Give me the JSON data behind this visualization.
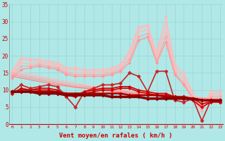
{
  "xlabel": "Vent moyen/en rafales ( km/h )",
  "xlabel_color": "#cc0000",
  "bg_color": "#b0e8e8",
  "grid_color": "#99cccc",
  "xmin": 0,
  "xmax": 23,
  "ymin": 0,
  "ymax": 35,
  "yticks": [
    0,
    5,
    10,
    15,
    20,
    25,
    30,
    35
  ],
  "xticks": [
    0,
    1,
    2,
    3,
    4,
    5,
    6,
    7,
    8,
    9,
    10,
    11,
    12,
    13,
    14,
    15,
    16,
    17,
    18,
    19,
    20,
    21,
    22,
    23
  ],
  "series": [
    {
      "color": "#ffbbbb",
      "lw": 1.0,
      "marker": "D",
      "ms": 2.0,
      "data": [
        15.5,
        19.5,
        19.0,
        19.0,
        18.5,
        18.0,
        16.5,
        16.5,
        16.0,
        16.0,
        16.0,
        16.5,
        17.5,
        21.5,
        28.5,
        29.0,
        21.0,
        31.5,
        17.5,
        15.0,
        9.0,
        5.0,
        9.5,
        9.5
      ]
    },
    {
      "color": "#ffbbbb",
      "lw": 1.0,
      "marker": "D",
      "ms": 2.0,
      "data": [
        15.0,
        19.0,
        18.5,
        18.5,
        18.0,
        17.5,
        16.0,
        16.0,
        15.5,
        15.5,
        15.5,
        16.0,
        17.0,
        21.0,
        28.0,
        28.5,
        20.5,
        29.0,
        16.5,
        14.0,
        8.5,
        4.5,
        9.0,
        9.0
      ]
    },
    {
      "color": "#ffbbbb",
      "lw": 1.0,
      "marker": "D",
      "ms": 2.0,
      "data": [
        14.5,
        18.0,
        17.5,
        18.0,
        17.5,
        17.0,
        15.5,
        15.0,
        15.0,
        15.0,
        15.0,
        15.5,
        16.5,
        20.0,
        27.0,
        27.5,
        19.5,
        27.0,
        16.0,
        13.0,
        8.0,
        4.0,
        8.5,
        8.5
      ]
    },
    {
      "color": "#ffaaaa",
      "lw": 1.0,
      "marker": "D",
      "ms": 2.0,
      "data": [
        14.0,
        17.0,
        17.0,
        17.5,
        17.0,
        16.5,
        15.0,
        14.5,
        14.5,
        14.5,
        14.5,
        15.0,
        16.0,
        19.0,
        25.5,
        26.5,
        18.5,
        25.5,
        15.0,
        12.0,
        7.5,
        4.0,
        8.0,
        8.0
      ]
    },
    {
      "color": "#ff9999",
      "lw": 1.0,
      "marker": "D",
      "ms": 2.0,
      "data": [
        13.5,
        16.0,
        16.5,
        17.0,
        16.5,
        16.0,
        14.5,
        14.0,
        14.0,
        14.0,
        14.0,
        14.5,
        15.5,
        18.0,
        24.5,
        25.5,
        18.0,
        24.0,
        14.5,
        11.5,
        7.5,
        5.5,
        7.5,
        7.5
      ]
    },
    {
      "color": "#ffbbbb",
      "lw": 1.0,
      "marker": "",
      "ms": 0,
      "data": [
        15.5,
        15.0,
        14.5,
        14.0,
        13.5,
        13.0,
        12.5,
        12.0,
        11.5,
        11.0,
        10.5,
        10.2,
        9.9,
        9.6,
        9.3,
        9.0,
        8.8,
        8.6,
        8.4,
        8.2,
        8.0,
        7.8,
        7.6,
        7.4
      ]
    },
    {
      "color": "#ffaaaa",
      "lw": 1.0,
      "marker": "",
      "ms": 0,
      "data": [
        15.0,
        14.5,
        14.0,
        13.5,
        13.0,
        12.5,
        12.0,
        11.5,
        11.2,
        10.8,
        10.4,
        10.1,
        9.8,
        9.5,
        9.2,
        8.9,
        8.7,
        8.5,
        8.3,
        8.1,
        7.9,
        7.7,
        7.5,
        7.3
      ]
    },
    {
      "color": "#ff9999",
      "lw": 1.0,
      "marker": "",
      "ms": 0,
      "data": [
        14.5,
        14.0,
        13.5,
        13.0,
        12.5,
        12.0,
        11.5,
        11.0,
        10.8,
        10.5,
        10.2,
        9.9,
        9.6,
        9.3,
        9.0,
        8.7,
        8.5,
        8.3,
        8.1,
        7.9,
        7.7,
        7.5,
        7.3,
        7.1
      ]
    },
    {
      "color": "#ff8888",
      "lw": 1.0,
      "marker": "",
      "ms": 0,
      "data": [
        14.0,
        13.5,
        13.0,
        12.5,
        12.0,
        11.6,
        11.2,
        10.8,
        10.5,
        10.2,
        9.9,
        9.6,
        9.3,
        9.0,
        8.7,
        8.4,
        8.2,
        8.0,
        7.8,
        7.6,
        7.4,
        7.2,
        7.0,
        6.8
      ]
    },
    {
      "color": "#cc2222",
      "lw": 1.2,
      "marker": "D",
      "ms": 2.5,
      "data": [
        9.5,
        11.5,
        10.5,
        11.0,
        11.5,
        11.0,
        8.0,
        5.0,
        9.5,
        10.5,
        11.5,
        11.5,
        12.0,
        15.0,
        14.0,
        9.5,
        15.5,
        15.5,
        7.0,
        6.5,
        7.5,
        1.0,
        7.0,
        6.5
      ]
    },
    {
      "color": "#cc0000",
      "lw": 1.2,
      "marker": "D",
      "ms": 2.0,
      "data": [
        9.0,
        10.5,
        10.0,
        10.5,
        10.5,
        10.0,
        8.5,
        8.5,
        9.5,
        10.0,
        10.5,
        10.5,
        11.0,
        11.0,
        10.0,
        9.5,
        9.0,
        9.0,
        8.0,
        7.5,
        7.0,
        5.0,
        6.5,
        6.5
      ]
    },
    {
      "color": "#cc0000",
      "lw": 1.2,
      "marker": "D",
      "ms": 2.0,
      "data": [
        9.0,
        10.0,
        10.0,
        10.0,
        10.0,
        9.5,
        8.5,
        8.0,
        9.0,
        9.5,
        10.0,
        10.0,
        10.5,
        10.5,
        9.5,
        9.0,
        8.5,
        8.5,
        8.0,
        7.5,
        7.5,
        6.0,
        6.5,
        6.5
      ]
    },
    {
      "color": "#aa0000",
      "lw": 1.8,
      "marker": "D",
      "ms": 2.5,
      "data": [
        9.5,
        9.5,
        9.5,
        9.5,
        9.5,
        9.5,
        9.0,
        9.0,
        9.0,
        9.0,
        9.0,
        9.0,
        9.0,
        8.5,
        8.5,
        8.5,
        8.5,
        8.0,
        8.0,
        8.0,
        7.5,
        7.0,
        7.0,
        7.0
      ]
    },
    {
      "color": "#880000",
      "lw": 2.5,
      "marker": "D",
      "ms": 2.5,
      "data": [
        9.5,
        9.5,
        9.5,
        9.0,
        9.0,
        9.0,
        8.5,
        8.5,
        8.5,
        8.5,
        8.5,
        8.0,
        8.0,
        8.0,
        8.0,
        7.5,
        7.5,
        7.5,
        7.5,
        7.5,
        7.5,
        7.0,
        7.0,
        7.0
      ]
    }
  ],
  "wind_dirs": [
    0,
    0,
    0,
    0,
    0,
    0,
    0,
    45,
    0,
    0,
    90,
    90,
    90,
    90,
    90,
    90,
    90,
    90,
    135,
    90,
    135,
    135,
    180,
    135
  ]
}
